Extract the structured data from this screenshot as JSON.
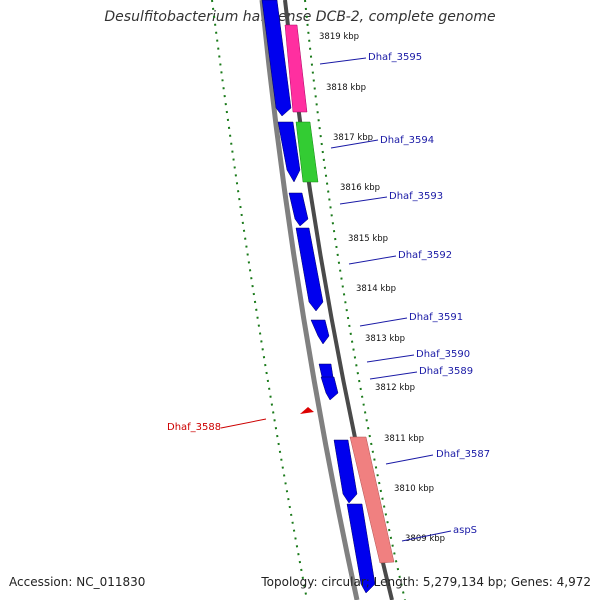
{
  "title": "Desulfitobacterium hafniense DCB-2, complete genome",
  "accession": "Accession: NC_011830",
  "stats": "Topology: circular; Length: 5,279,134 bp; Genes: 4,972",
  "colors": {
    "backbone": "#808080",
    "dark_track": "#4a4a4a",
    "forward_gene": "#0000ee",
    "pink_gene": "#ff2fa0",
    "green_gene": "#33cc33",
    "salmon_gene": "#f08080",
    "tick": "#1a7a1a",
    "label_blue": "#1a1aa6",
    "label_red": "#cc0000"
  },
  "kbp_ticks": [
    "3819 kbp",
    "3818 kbp",
    "3817 kbp",
    "3816 kbp",
    "3815 kbp",
    "3814 kbp",
    "3813 kbp",
    "3812 kbp",
    "3811 kbp",
    "3810 kbp",
    "3809 kbp"
  ],
  "gene_labels": [
    "Dhaf_3595",
    "Dhaf_3594",
    "Dhaf_3593",
    "Dhaf_3592",
    "Dhaf_3591",
    "Dhaf_3590",
    "Dhaf_3589",
    "Dhaf_3588",
    "Dhaf_3587",
    "aspS"
  ]
}
